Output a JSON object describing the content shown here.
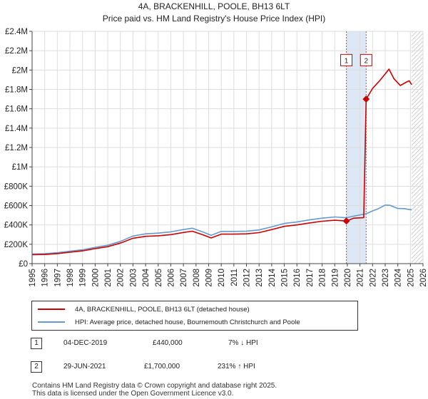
{
  "chart_title": "4A, BRACKENHILL, POOLE, BH13 6LT",
  "chart_subtitle": "Price paid vs. HM Land Registry's House Price Index (HPI)",
  "chart_data": {
    "type": "line",
    "title": "4A, BRACKENHILL, POOLE, BH13 6LT",
    "subtitle": "Price paid vs. HM Land Registry's House Price Index (HPI)",
    "xlabel": "",
    "ylabel": "",
    "xlim": [
      1995,
      2026
    ],
    "ylim": [
      0,
      2400000
    ],
    "grid": true,
    "x_ticks": [
      "1995",
      "1996",
      "1997",
      "1998",
      "1999",
      "2000",
      "2001",
      "2002",
      "2003",
      "2004",
      "2005",
      "2006",
      "2007",
      "2008",
      "2009",
      "2010",
      "2011",
      "2012",
      "2013",
      "2014",
      "2015",
      "2016",
      "2017",
      "2018",
      "2019",
      "2020",
      "2021",
      "2022",
      "2023",
      "2024",
      "2025",
      "2026"
    ],
    "y_ticks": [
      {
        "value": 0,
        "label": "£0"
      },
      {
        "value": 200000,
        "label": "£200K"
      },
      {
        "value": 400000,
        "label": "£400K"
      },
      {
        "value": 600000,
        "label": "£600K"
      },
      {
        "value": 800000,
        "label": "£800K"
      },
      {
        "value": 1000000,
        "label": "£1M"
      },
      {
        "value": 1200000,
        "label": "£1.2M"
      },
      {
        "value": 1400000,
        "label": "£1.4M"
      },
      {
        "value": 1600000,
        "label": "£1.6M"
      },
      {
        "value": 1800000,
        "label": "£1.8M"
      },
      {
        "value": 2000000,
        "label": "£2M"
      },
      {
        "value": 2200000,
        "label": "£2.2M"
      },
      {
        "value": 2400000,
        "label": "£2.4M"
      }
    ],
    "shaded_regions": [
      {
        "from": 2019.92,
        "to": 2021.49,
        "label": "between sales"
      },
      {
        "from": 2025.1,
        "to": 2026,
        "label": "projection"
      }
    ],
    "series": [
      {
        "name": "4A, BRACKENHILL, POOLE, BH13 6LT (detached house)",
        "color": "#cc0000",
        "points": [
          [
            1995.0,
            92000
          ],
          [
            1996.0,
            94000
          ],
          [
            1997.0,
            104000
          ],
          [
            1998.0,
            118000
          ],
          [
            1999.0,
            132000
          ],
          [
            2000.0,
            155000
          ],
          [
            2001.0,
            175000
          ],
          [
            2002.0,
            212000
          ],
          [
            2003.0,
            262000
          ],
          [
            2004.0,
            282000
          ],
          [
            2005.0,
            288000
          ],
          [
            2006.0,
            300000
          ],
          [
            2007.0,
            322000
          ],
          [
            2007.7,
            335000
          ],
          [
            2008.5,
            300000
          ],
          [
            2009.2,
            265000
          ],
          [
            2010.0,
            305000
          ],
          [
            2011.0,
            305000
          ],
          [
            2012.0,
            308000
          ],
          [
            2013.0,
            320000
          ],
          [
            2014.0,
            352000
          ],
          [
            2015.0,
            385000
          ],
          [
            2016.0,
            400000
          ],
          [
            2017.0,
            420000
          ],
          [
            2018.0,
            438000
          ],
          [
            2019.0,
            448000
          ],
          [
            2019.92,
            440000
          ],
          [
            2020.5,
            470000
          ],
          [
            2021.3,
            475000
          ],
          [
            2021.49,
            1700000
          ],
          [
            2022.0,
            1810000
          ],
          [
            2022.5,
            1880000
          ],
          [
            2023.0,
            1960000
          ],
          [
            2023.3,
            2010000
          ],
          [
            2023.7,
            1910000
          ],
          [
            2024.2,
            1840000
          ],
          [
            2024.6,
            1870000
          ],
          [
            2024.9,
            1890000
          ],
          [
            2025.1,
            1850000
          ]
        ]
      },
      {
        "name": "HPI: Average price, detached house, Bournemouth Christchurch and Poole",
        "color": "#6699cc",
        "points": [
          [
            1995.0,
            100000
          ],
          [
            1996.0,
            102000
          ],
          [
            1997.0,
            113000
          ],
          [
            1998.0,
            128000
          ],
          [
            1999.0,
            143000
          ],
          [
            2000.0,
            168000
          ],
          [
            2001.0,
            190000
          ],
          [
            2002.0,
            230000
          ],
          [
            2003.0,
            285000
          ],
          [
            2004.0,
            308000
          ],
          [
            2005.0,
            315000
          ],
          [
            2006.0,
            328000
          ],
          [
            2007.0,
            352000
          ],
          [
            2007.7,
            366000
          ],
          [
            2008.5,
            330000
          ],
          [
            2009.2,
            292000
          ],
          [
            2010.0,
            333000
          ],
          [
            2011.0,
            333000
          ],
          [
            2012.0,
            336000
          ],
          [
            2013.0,
            348000
          ],
          [
            2014.0,
            380000
          ],
          [
            2015.0,
            415000
          ],
          [
            2016.0,
            430000
          ],
          [
            2017.0,
            452000
          ],
          [
            2018.0,
            470000
          ],
          [
            2019.0,
            482000
          ],
          [
            2019.92,
            474000
          ],
          [
            2020.5,
            490000
          ],
          [
            2021.49,
            515000
          ],
          [
            2022.0,
            545000
          ],
          [
            2022.5,
            570000
          ],
          [
            2023.0,
            605000
          ],
          [
            2023.4,
            602000
          ],
          [
            2024.0,
            570000
          ],
          [
            2024.5,
            568000
          ],
          [
            2025.1,
            555000
          ]
        ]
      }
    ],
    "markers": [
      {
        "id": "1",
        "x": 2019.92,
        "y": 440000,
        "color": "#cc0000"
      },
      {
        "id": "2",
        "x": 2021.49,
        "y": 1700000,
        "color": "#cc0000"
      }
    ]
  },
  "legend": {
    "items": [
      {
        "label": "4A, BRACKENHILL, POOLE, BH13 6LT (detached house)",
        "color": "#cc0000"
      },
      {
        "label": "HPI: Average price, detached house, Bournemouth Christchurch and Poole",
        "color": "#6699cc"
      }
    ]
  },
  "transactions": [
    {
      "num": "1",
      "date": "04-DEC-2019",
      "price": "£440,000",
      "hpi": "7% ↓ HPI"
    },
    {
      "num": "2",
      "date": "29-JUN-2021",
      "price": "£1,700,000",
      "hpi": "231% ↑ HPI"
    }
  ],
  "footer": {
    "line1": "Contains HM Land Registry data © Crown copyright and database right 2025.",
    "line2": "This data is licensed under the Open Government Licence v3.0."
  }
}
